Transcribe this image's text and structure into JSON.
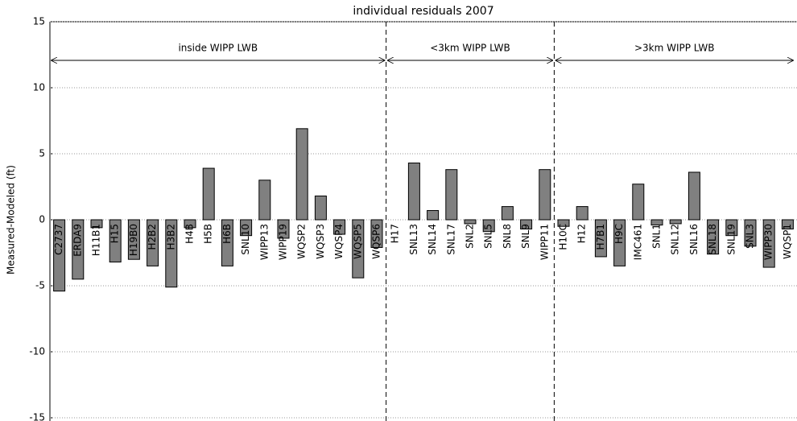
{
  "chart_data": {
    "type": "bar",
    "title": "individual residuals 2007",
    "y_label": "Measured-Modeled (ft)",
    "categories": [
      "C2737",
      "ERDA9",
      "H11B1",
      "H15",
      "H19B0",
      "H2B2",
      "H3B2",
      "H4B",
      "H5B",
      "H6B",
      "SNL10",
      "WIPP13",
      "WIPP19",
      "WQSP2",
      "WQSP3",
      "WQSP4",
      "WQSP5",
      "WQSP6",
      "H17",
      "SNL13",
      "SNL14",
      "SNL17",
      "SNL2",
      "SNL5",
      "SNL8",
      "SNL9",
      "WIPP11",
      "H10C",
      "H12",
      "H7B1",
      "H9C",
      "IMC461",
      "SNL1",
      "SNL12",
      "SNL16",
      "SNL18",
      "SNL19",
      "SNL3",
      "WIPP30",
      "WQSP1"
    ],
    "values": [
      -5.4,
      -4.5,
      -0.6,
      -3.2,
      -3.0,
      -3.5,
      -5.1,
      -0.6,
      3.9,
      -3.5,
      -1.2,
      3.0,
      -1.4,
      6.9,
      1.8,
      -1.1,
      -4.4,
      -2.1,
      0,
      4.3,
      0.7,
      3.8,
      -0.3,
      -0.9,
      1.0,
      -0.7,
      3.8,
      -0.5,
      1.0,
      -2.8,
      -3.5,
      2.7,
      -0.4,
      -0.3,
      3.6,
      -2.6,
      -1.2,
      -2.0,
      -3.6,
      -0.7
    ],
    "color": "#808080",
    "annotations": [
      "inside WIPP LWB",
      "<3km WIPP LWB",
      ">3km WIPP LWB"
    ],
    "ylim": [
      -15,
      15
    ],
    "yticks": [
      -15,
      -10,
      -5,
      0,
      5,
      10,
      15
    ],
    "grid": true
  }
}
